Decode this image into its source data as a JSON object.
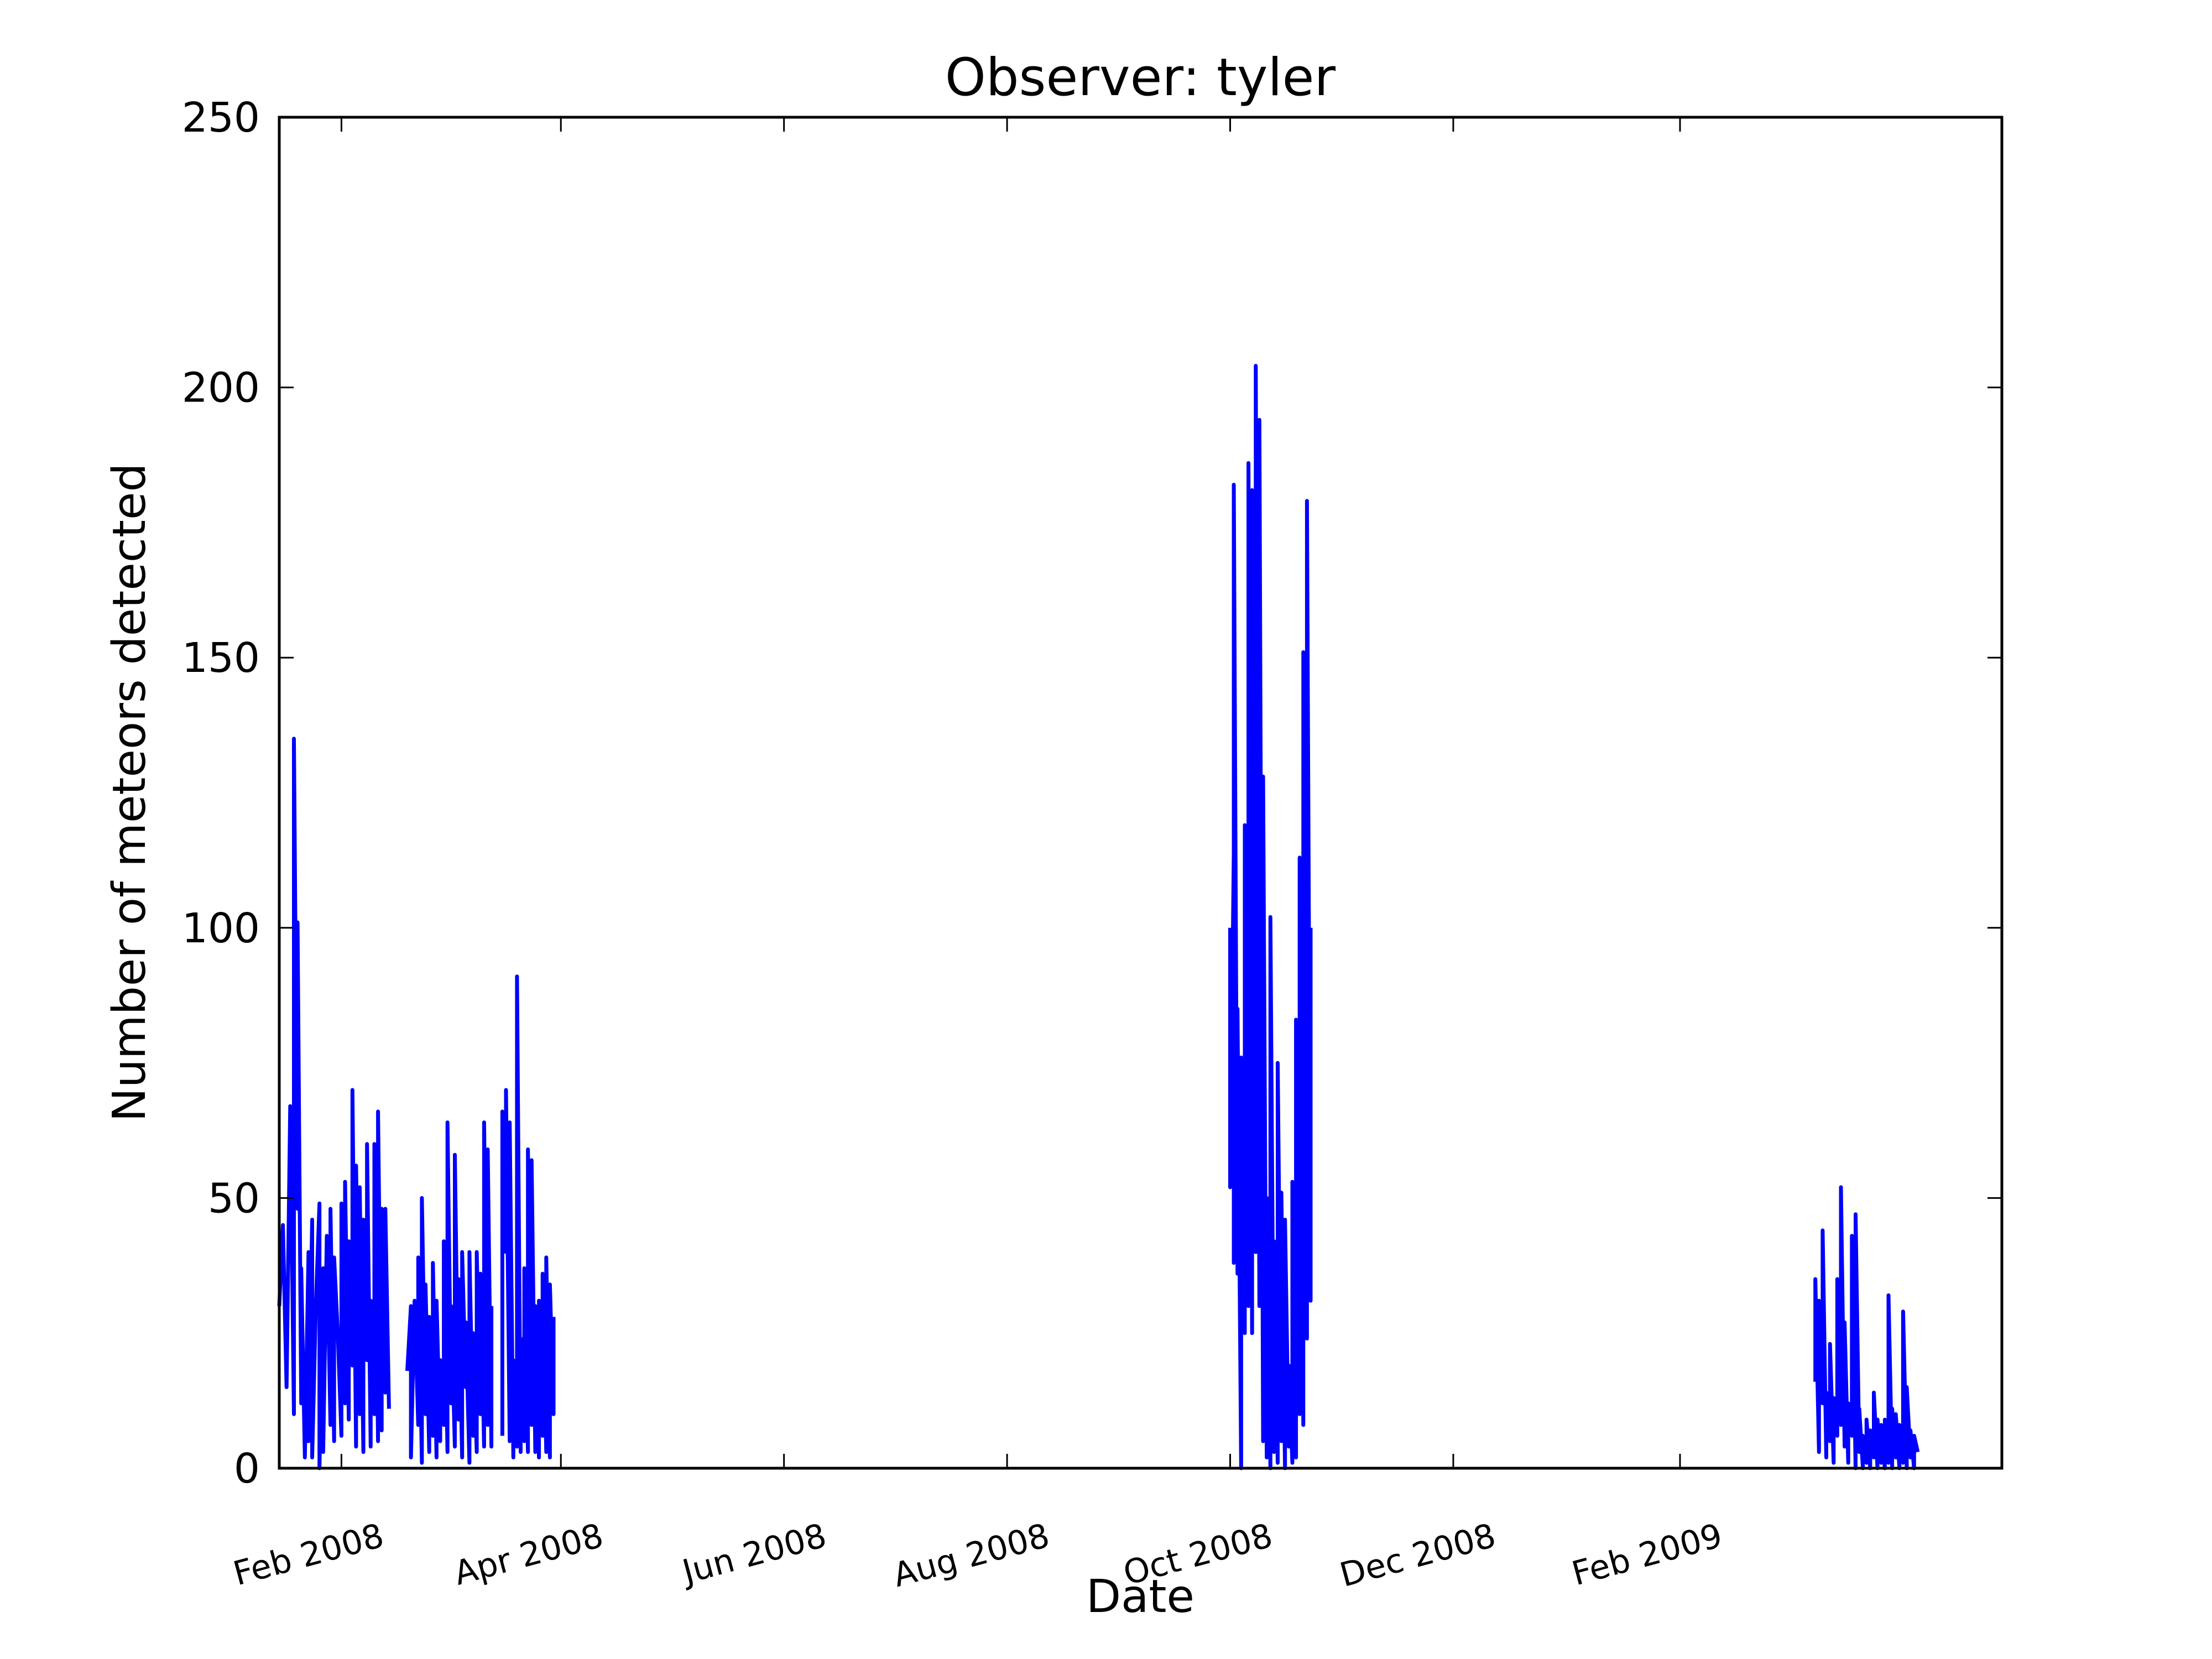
{
  "chart_data": {
    "type": "line",
    "title": "Observer: tyler",
    "xlabel": "Date",
    "ylabel": "Number of meteors detected",
    "x_axis_kind": "date",
    "xlim": [
      "2008-01-15",
      "2009-04-30"
    ],
    "ylim": [
      0,
      250
    ],
    "yticks": [
      0,
      50,
      100,
      150,
      200,
      250
    ],
    "xticks": [
      {
        "date": "2008-02-01",
        "label": "Feb 2008"
      },
      {
        "date": "2008-04-01",
        "label": "Apr 2008"
      },
      {
        "date": "2008-06-01",
        "label": "Jun 2008"
      },
      {
        "date": "2008-08-01",
        "label": "Aug 2008"
      },
      {
        "date": "2008-10-01",
        "label": "Oct 2008"
      },
      {
        "date": "2008-12-01",
        "label": "Dec 2008"
      },
      {
        "date": "2009-02-01",
        "label": "Feb 2009"
      }
    ],
    "grid": false,
    "legend": "none",
    "line_color": "#0000ff",
    "series": [
      {
        "segments": [
          [
            [
              "2008-01-15",
              30
            ],
            [
              "2008-01-16",
              45
            ],
            [
              "2008-01-17",
              15
            ],
            [
              "2008-01-18",
              67
            ],
            [
              "2008-01-19",
              10
            ],
            [
              "2008-01-19",
              135
            ],
            [
              "2008-01-20",
              48
            ],
            [
              "2008-01-20",
              101
            ],
            [
              "2008-01-21",
              12
            ],
            [
              "2008-01-21",
              37
            ],
            [
              "2008-01-22",
              2
            ],
            [
              "2008-01-23",
              40
            ],
            [
              "2008-01-23",
              5
            ],
            [
              "2008-01-24",
              46
            ],
            [
              "2008-01-24",
              2
            ],
            [
              "2008-01-25",
              30
            ],
            [
              "2008-01-26",
              49
            ],
            [
              "2008-01-26",
              0
            ],
            [
              "2008-01-27",
              37
            ],
            [
              "2008-01-27",
              3
            ],
            [
              "2008-01-28",
              43
            ],
            [
              "2008-01-29",
              8
            ],
            [
              "2008-01-29",
              48
            ],
            [
              "2008-01-30",
              5
            ],
            [
              "2008-01-30",
              39
            ],
            [
              "2008-01-31",
              25
            ],
            [
              "2008-02-01",
              6
            ],
            [
              "2008-02-01",
              49
            ],
            [
              "2008-02-02",
              12
            ],
            [
              "2008-02-02",
              53
            ],
            [
              "2008-02-03",
              9
            ],
            [
              "2008-02-03",
              42
            ],
            [
              "2008-02-04",
              19
            ],
            [
              "2008-02-04",
              70
            ],
            [
              "2008-02-05",
              4
            ],
            [
              "2008-02-05",
              56
            ],
            [
              "2008-02-06",
              10
            ],
            [
              "2008-02-06",
              52
            ],
            [
              "2008-02-07",
              3
            ],
            [
              "2008-02-07",
              46
            ],
            [
              "2008-02-08",
              20
            ],
            [
              "2008-02-08",
              60
            ],
            [
              "2008-02-09",
              4
            ],
            [
              "2008-02-09",
              31
            ],
            [
              "2008-02-10",
              10
            ],
            [
              "2008-02-10",
              60
            ],
            [
              "2008-02-11",
              5
            ],
            [
              "2008-02-11",
              66
            ],
            [
              "2008-02-12",
              7
            ],
            [
              "2008-02-12",
              48
            ],
            [
              "2008-02-13",
              14
            ],
            [
              "2008-02-13",
              48
            ],
            [
              "2008-02-14",
              11
            ]
          ],
          [
            [
              "2008-02-19",
              18
            ],
            [
              "2008-02-20",
              30
            ],
            [
              "2008-02-20",
              2
            ],
            [
              "2008-02-21",
              31
            ],
            [
              "2008-02-22",
              8
            ],
            [
              "2008-02-22",
              39
            ],
            [
              "2008-02-23",
              1
            ],
            [
              "2008-02-23",
              50
            ],
            [
              "2008-02-24",
              10
            ],
            [
              "2008-02-24",
              34
            ],
            [
              "2008-02-25",
              3
            ],
            [
              "2008-02-25",
              28
            ],
            [
              "2008-02-26",
              6
            ],
            [
              "2008-02-26",
              38
            ],
            [
              "2008-02-27",
              2
            ],
            [
              "2008-02-27",
              31
            ],
            [
              "2008-02-28",
              5
            ],
            [
              "2008-02-28",
              20
            ],
            [
              "2008-02-29",
              8
            ],
            [
              "2008-02-29",
              42
            ],
            [
              "2008-03-01",
              3
            ],
            [
              "2008-03-01",
              64
            ],
            [
              "2008-03-02",
              12
            ],
            [
              "2008-03-02",
              30
            ],
            [
              "2008-03-03",
              4
            ],
            [
              "2008-03-03",
              58
            ],
            [
              "2008-03-04",
              9
            ],
            [
              "2008-03-04",
              35
            ],
            [
              "2008-03-05",
              2
            ],
            [
              "2008-03-05",
              40
            ],
            [
              "2008-03-06",
              15
            ],
            [
              "2008-03-06",
              27
            ],
            [
              "2008-03-07",
              1
            ],
            [
              "2008-03-07",
              40
            ],
            [
              "2008-03-08",
              6
            ],
            [
              "2008-03-08",
              25
            ],
            [
              "2008-03-09",
              3
            ],
            [
              "2008-03-09",
              40
            ],
            [
              "2008-03-10",
              10
            ],
            [
              "2008-03-10",
              36
            ],
            [
              "2008-03-11",
              4
            ],
            [
              "2008-03-11",
              64
            ],
            [
              "2008-03-12",
              8
            ],
            [
              "2008-03-12",
              59
            ],
            [
              "2008-03-13",
              4
            ],
            [
              "2008-03-13",
              30
            ]
          ],
          [
            [
              "2008-03-16",
              6
            ],
            [
              "2008-03-16",
              66
            ],
            [
              "2008-03-17",
              40
            ],
            [
              "2008-03-17",
              70
            ],
            [
              "2008-03-18",
              5
            ],
            [
              "2008-03-18",
              64
            ],
            [
              "2008-03-19",
              2
            ],
            [
              "2008-03-19",
              20
            ],
            [
              "2008-03-20",
              4
            ],
            [
              "2008-03-20",
              91
            ],
            [
              "2008-03-21",
              3
            ],
            [
              "2008-03-21",
              24
            ],
            [
              "2008-03-22",
              5
            ],
            [
              "2008-03-22",
              37
            ],
            [
              "2008-03-23",
              3
            ],
            [
              "2008-03-23",
              59
            ],
            [
              "2008-03-24",
              8
            ],
            [
              "2008-03-24",
              57
            ],
            [
              "2008-03-25",
              3
            ],
            [
              "2008-03-25",
              30
            ],
            [
              "2008-03-26",
              2
            ],
            [
              "2008-03-26",
              31
            ],
            [
              "2008-03-27",
              6
            ],
            [
              "2008-03-27",
              36
            ],
            [
              "2008-03-28",
              3
            ],
            [
              "2008-03-28",
              39
            ],
            [
              "2008-03-29",
              2
            ],
            [
              "2008-03-29",
              34
            ],
            [
              "2008-03-30",
              10
            ],
            [
              "2008-03-30",
              28
            ]
          ],
          [
            [
              "2008-10-01",
              100
            ],
            [
              "2008-10-01",
              52
            ],
            [
              "2008-10-02",
              114
            ],
            [
              "2008-10-02",
              38
            ],
            [
              "2008-10-02",
              182
            ],
            [
              "2008-10-03",
              36
            ],
            [
              "2008-10-03",
              85
            ],
            [
              "2008-10-04",
              0
            ],
            [
              "2008-10-04",
              76
            ],
            [
              "2008-10-05",
              25
            ],
            [
              "2008-10-05",
              119
            ],
            [
              "2008-10-06",
              30
            ],
            [
              "2008-10-06",
              186
            ],
            [
              "2008-10-07",
              25
            ],
            [
              "2008-10-07",
              181
            ],
            [
              "2008-10-08",
              40
            ],
            [
              "2008-10-08",
              204
            ],
            [
              "2008-10-09",
              30
            ],
            [
              "2008-10-09",
              194
            ],
            [
              "2008-10-10",
              5
            ],
            [
              "2008-10-10",
              128
            ],
            [
              "2008-10-11",
              2
            ],
            [
              "2008-10-11",
              50
            ],
            [
              "2008-10-12",
              0
            ],
            [
              "2008-10-12",
              102
            ],
            [
              "2008-10-13",
              3
            ],
            [
              "2008-10-13",
              42
            ],
            [
              "2008-10-14",
              1
            ],
            [
              "2008-10-14",
              75
            ],
            [
              "2008-10-15",
              5
            ],
            [
              "2008-10-15",
              51
            ],
            [
              "2008-10-16",
              0
            ],
            [
              "2008-10-16",
              46
            ],
            [
              "2008-10-17",
              4
            ],
            [
              "2008-10-17",
              19
            ],
            [
              "2008-10-18",
              1
            ],
            [
              "2008-10-18",
              53
            ],
            [
              "2008-10-19",
              2
            ],
            [
              "2008-10-19",
              83
            ],
            [
              "2008-10-20",
              10
            ],
            [
              "2008-10-20",
              113
            ],
            [
              "2008-10-21",
              8
            ],
            [
              "2008-10-21",
              151
            ],
            [
              "2008-10-22",
              24
            ],
            [
              "2008-10-22",
              179
            ],
            [
              "2008-10-23",
              31
            ],
            [
              "2008-10-23",
              100
            ]
          ],
          [
            [
              "2009-03-10",
              16
            ],
            [
              "2009-03-10",
              35
            ],
            [
              "2009-03-11",
              3
            ],
            [
              "2009-03-11",
              31
            ],
            [
              "2009-03-12",
              12
            ],
            [
              "2009-03-12",
              44
            ],
            [
              "2009-03-13",
              2
            ],
            [
              "2009-03-13",
              14
            ],
            [
              "2009-03-14",
              5
            ],
            [
              "2009-03-14",
              23
            ],
            [
              "2009-03-15",
              1
            ],
            [
              "2009-03-15",
              13
            ],
            [
              "2009-03-16",
              6
            ],
            [
              "2009-03-16",
              35
            ],
            [
              "2009-03-17",
              8
            ],
            [
              "2009-03-17",
              52
            ],
            [
              "2009-03-18",
              4
            ],
            [
              "2009-03-18",
              27
            ],
            [
              "2009-03-19",
              1
            ],
            [
              "2009-03-19",
              12
            ],
            [
              "2009-03-20",
              6
            ],
            [
              "2009-03-20",
              43
            ],
            [
              "2009-03-21",
              0
            ],
            [
              "2009-03-21",
              47
            ],
            [
              "2009-03-22",
              3
            ],
            [
              "2009-03-22",
              11
            ],
            [
              "2009-03-23",
              0
            ],
            [
              "2009-03-23",
              6
            ],
            [
              "2009-03-24",
              1
            ],
            [
              "2009-03-24",
              9
            ],
            [
              "2009-03-25",
              0
            ],
            [
              "2009-03-25",
              7
            ],
            [
              "2009-03-26",
              2
            ],
            [
              "2009-03-26",
              14
            ],
            [
              "2009-03-27",
              0
            ],
            [
              "2009-03-27",
              9
            ],
            [
              "2009-03-28",
              1
            ],
            [
              "2009-03-28",
              8
            ],
            [
              "2009-03-29",
              0
            ],
            [
              "2009-03-29",
              9
            ],
            [
              "2009-03-30",
              1
            ],
            [
              "2009-03-30",
              32
            ],
            [
              "2009-03-31",
              0
            ],
            [
              "2009-03-31",
              11
            ],
            [
              "2009-04-01",
              2
            ],
            [
              "2009-04-01",
              10
            ],
            [
              "2009-04-02",
              0
            ],
            [
              "2009-04-02",
              8
            ],
            [
              "2009-04-03",
              1
            ],
            [
              "2009-04-03",
              29
            ],
            [
              "2009-04-04",
              0
            ],
            [
              "2009-04-04",
              15
            ],
            [
              "2009-04-05",
              2
            ],
            [
              "2009-04-05",
              7
            ],
            [
              "2009-04-06",
              0
            ],
            [
              "2009-04-06",
              6
            ],
            [
              "2009-04-07",
              3
            ]
          ]
        ]
      }
    ]
  }
}
